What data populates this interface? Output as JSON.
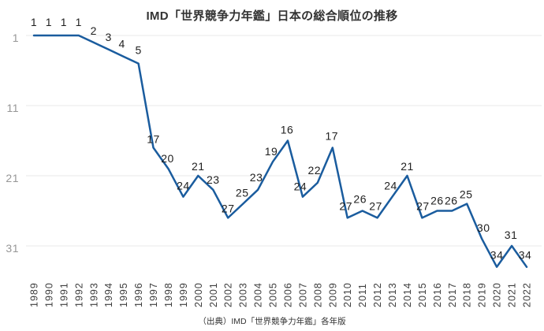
{
  "chart_data": {
    "type": "line",
    "title": "IMD「世界競争力年鑑」日本の総合順位の推移",
    "x": [
      1989,
      1990,
      1991,
      1992,
      1993,
      1994,
      1995,
      1996,
      1997,
      1998,
      1999,
      2000,
      2001,
      2002,
      2003,
      2004,
      2005,
      2006,
      2007,
      2008,
      2009,
      2010,
      2011,
      2012,
      2013,
      2014,
      2015,
      2016,
      2017,
      2018,
      2019,
      2020,
      2021,
      2022
    ],
    "values": [
      1,
      1,
      1,
      1,
      2,
      3,
      4,
      5,
      17,
      20,
      24,
      21,
      23,
      27,
      25,
      23,
      19,
      16,
      24,
      22,
      17,
      27,
      26,
      27,
      24,
      21,
      27,
      26,
      26,
      25,
      30,
      34,
      31,
      34
    ],
    "xlabel": "",
    "ylabel": "",
    "y_axis": {
      "ticks": [
        1,
        11,
        21,
        31
      ],
      "inverted": true,
      "range": [
        1,
        37
      ]
    },
    "grid": "horizontal-only",
    "legend": "none",
    "point_labels_visible": true
  },
  "source_note": "（出典）IMD「世界競争力年鑑」各年版",
  "colors": {
    "line": "#1a5c9e",
    "grid": "#e9e9e9",
    "ytick_label": "#969696",
    "point_label": "#1f1f1f",
    "year_label": "#3d3d3d",
    "title": "#333333"
  }
}
